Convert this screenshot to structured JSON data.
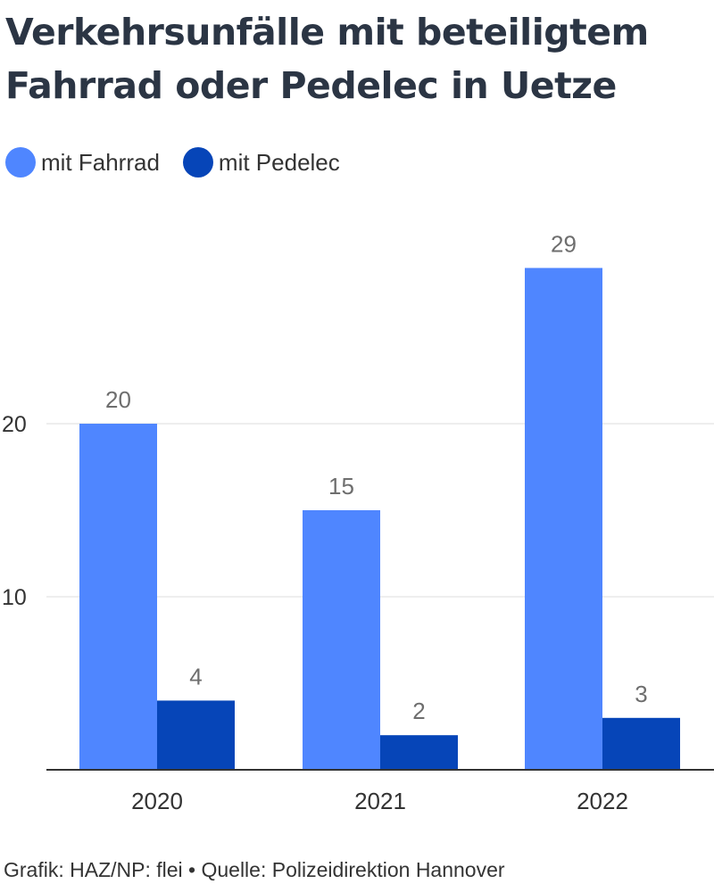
{
  "title": "Verkehrsunfälle mit beteiligtem Fahrrad oder Pedelec in Uetze",
  "footer": "Grafik: HAZ/NP: flei • Quelle: Polizeidirektion Hannover",
  "colors": {
    "fahrrad": "#4f86ff",
    "pedelec": "#0645b8",
    "grid": "#dddddd",
    "axis": "#333333",
    "label": "#6e6e6e"
  },
  "chart_data": {
    "type": "bar",
    "title": "Verkehrsunfälle mit beteiligtem Fahrrad oder Pedelec in Uetze",
    "xlabel": "",
    "ylabel": "",
    "categories": [
      "2020",
      "2021",
      "2022"
    ],
    "series": [
      {
        "name": "mit Fahrrad",
        "values": [
          20,
          15,
          29
        ]
      },
      {
        "name": "mit Pedelec",
        "values": [
          4,
          2,
          3
        ]
      }
    ],
    "yticks": [
      10,
      20
    ],
    "ylim": [
      0,
      30
    ],
    "grid": true,
    "legend": "top-left",
    "data_labels": true
  }
}
